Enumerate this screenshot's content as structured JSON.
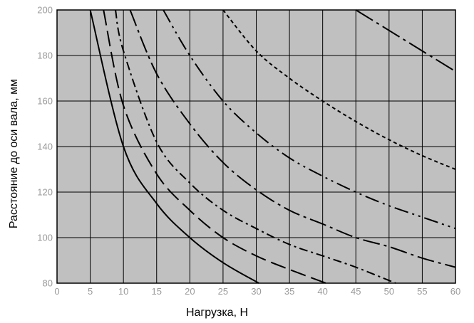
{
  "chart_data": {
    "type": "line",
    "title": "",
    "xlabel": "Нагрузка, Н",
    "ylabel": "Расстояние до оси вала, мм",
    "xlim": [
      0,
      60
    ],
    "ylim": [
      80,
      200
    ],
    "xticks": [
      0,
      5,
      10,
      15,
      20,
      25,
      30,
      35,
      40,
      45,
      50,
      55,
      60
    ],
    "yticks": [
      80,
      100,
      120,
      140,
      160,
      180,
      200
    ],
    "grid": true,
    "legend": "none",
    "colors": {
      "plot_background": "#c0c0c0",
      "grid": "#000000",
      "line": "#000000",
      "tick_label": "#9a9a9a"
    },
    "series": [
      {
        "style": "solid",
        "x": [
          5,
          10,
          15,
          20,
          25,
          30.4
        ],
        "y": [
          200,
          140,
          115,
          100,
          89,
          80
        ]
      },
      {
        "style": "long-dash",
        "x": [
          7,
          10,
          15,
          20,
          25,
          30,
          35,
          40.5
        ],
        "y": [
          200,
          158,
          128,
          112,
          100,
          92,
          86,
          80
        ]
      },
      {
        "style": "dash-dot",
        "x": [
          8.8,
          10,
          15,
          20,
          25,
          30,
          35,
          40,
          45,
          51
        ],
        "y": [
          200,
          182,
          142,
          124,
          112,
          104,
          97,
          92,
          87,
          80
        ]
      },
      {
        "style": "long-dash-dot",
        "x": [
          11,
          15,
          20,
          25,
          30,
          35,
          40,
          45,
          50,
          55,
          60
        ],
        "y": [
          200,
          172,
          150,
          133,
          121,
          112,
          106,
          100,
          96,
          91,
          87
        ]
      },
      {
        "style": "dash-dot-dot",
        "x": [
          16,
          20,
          25,
          30,
          35,
          40,
          45,
          50,
          55,
          60
        ],
        "y": [
          200,
          180,
          160,
          146,
          135,
          127,
          120,
          114,
          109,
          104
        ]
      },
      {
        "style": "short-dash",
        "x": [
          25,
          30,
          35,
          40,
          45,
          50,
          55,
          60
        ],
        "y": [
          200,
          182,
          170,
          160,
          151,
          143,
          136,
          130
        ]
      },
      {
        "style": "dash-dot-long",
        "x": [
          45,
          50,
          55,
          60
        ],
        "y": [
          200,
          191,
          182,
          173
        ]
      }
    ]
  }
}
